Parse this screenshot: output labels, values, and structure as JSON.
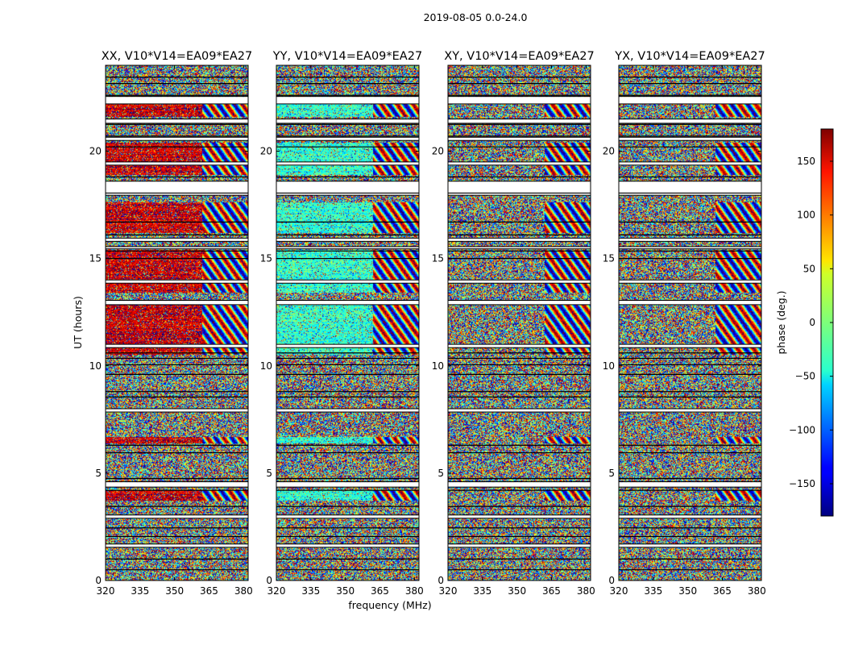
{
  "figure": {
    "suptitle": "2019-08-05 0.0-24.0"
  },
  "chart_data": {
    "type": "heatmap",
    "panels": [
      {
        "id": "xx",
        "title": "XX, V10*V14=EA09*EA27",
        "mode": "xx"
      },
      {
        "id": "yy",
        "title": "YY, V10*V14=EA09*EA27",
        "mode": "yy"
      },
      {
        "id": "xy",
        "title": "XY, V10*V14=EA09*EA27",
        "mode": "noise"
      },
      {
        "id": "yx",
        "title": "YX, V10*V14=EA09*EA27",
        "mode": "noise"
      }
    ],
    "xlabel": "frequency (MHz)",
    "ylabel": "UT (hours)",
    "xlim": [
      320,
      382
    ],
    "ylim": [
      0,
      24
    ],
    "xticks": [
      320,
      335,
      350,
      365,
      380
    ],
    "yticks": [
      0,
      5,
      10,
      15,
      20
    ],
    "colorbar": {
      "label": "phase (deg.)",
      "range": [
        -180,
        180
      ],
      "ticks": [
        150,
        100,
        50,
        0,
        -50,
        -100,
        -150
      ],
      "tick_labels": [
        "150",
        "100",
        "50",
        "0",
        "−50",
        "−100",
        "−150"
      ]
    },
    "flagged_bands_hours": [
      [
        1.55,
        1.7
      ],
      [
        2.9,
        3.05
      ],
      [
        4.35,
        4.6
      ],
      [
        7.85,
        8.0
      ],
      [
        10.85,
        11.0
      ],
      [
        12.85,
        13.05
      ],
      [
        13.85,
        14.0
      ],
      [
        15.45,
        15.55
      ],
      [
        15.8,
        15.95
      ],
      [
        17.95,
        18.6
      ],
      [
        19.35,
        19.5
      ],
      [
        20.5,
        20.65
      ],
      [
        21.3,
        21.5
      ],
      [
        22.2,
        22.55
      ]
    ],
    "sharp_lines_hours": [
      0.5,
      1.0,
      2.05,
      2.45,
      3.45,
      4.2,
      4.75,
      5.95,
      6.3,
      8.55,
      8.8,
      9.6,
      10.05,
      10.35,
      10.6,
      15.0,
      15.35,
      16.1,
      16.7,
      18.05,
      18.8,
      20.2,
      20.7,
      21.25,
      22.6,
      23.15,
      23.45
    ],
    "phase_offsets_deg": {
      "xx": 150,
      "yy": -30
    }
  }
}
